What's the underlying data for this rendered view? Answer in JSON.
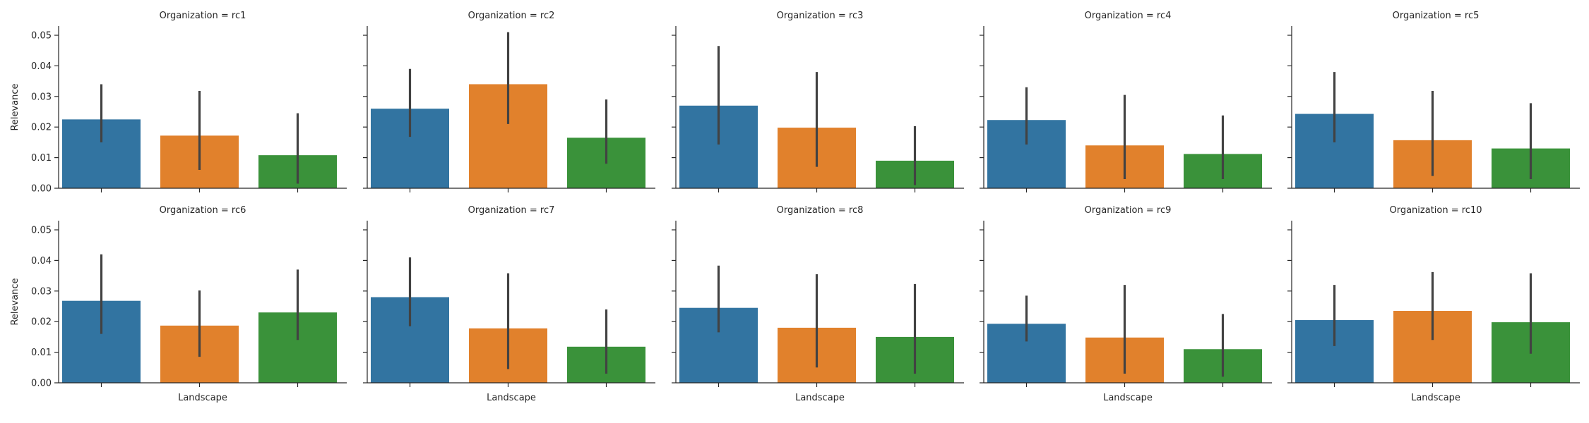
{
  "chart_data": {
    "type": "bar",
    "facet_label": "Organization",
    "xlabel": "Landscape",
    "ylabel": "Relevance",
    "ylim": [
      0,
      0.053
    ],
    "yticks": [
      0.0,
      0.01,
      0.02,
      0.03,
      0.04,
      0.05
    ],
    "ytick_labels": [
      "0.00",
      "0.01",
      "0.02",
      "0.03",
      "0.04",
      "0.05"
    ],
    "grid": false,
    "layout": {
      "rows": 2,
      "cols": 5
    },
    "colors": [
      "#3274a1",
      "#e1812c",
      "#3a923a"
    ],
    "panels": [
      {
        "title": "Organization = rc1",
        "values": [
          0.0225,
          0.0172,
          0.0108
        ],
        "ci": [
          [
            0.015,
            0.034
          ],
          [
            0.006,
            0.0318
          ],
          [
            0.0015,
            0.0245
          ]
        ]
      },
      {
        "title": "Organization = rc2",
        "values": [
          0.026,
          0.034,
          0.0165
        ],
        "ci": [
          [
            0.0168,
            0.039
          ],
          [
            0.021,
            0.051
          ],
          [
            0.008,
            0.029
          ]
        ]
      },
      {
        "title": "Organization = rc3",
        "values": [
          0.027,
          0.0198,
          0.009
        ],
        "ci": [
          [
            0.0143,
            0.0465
          ],
          [
            0.007,
            0.038
          ],
          [
            0.001,
            0.0203
          ]
        ]
      },
      {
        "title": "Organization = rc4",
        "values": [
          0.0223,
          0.014,
          0.0112
        ],
        "ci": [
          [
            0.0143,
            0.033
          ],
          [
            0.003,
            0.0305
          ],
          [
            0.003,
            0.0238
          ]
        ]
      },
      {
        "title": "Organization = rc5",
        "values": [
          0.0243,
          0.0157,
          0.013
        ],
        "ci": [
          [
            0.015,
            0.038
          ],
          [
            0.004,
            0.0318
          ],
          [
            0.003,
            0.0278
          ]
        ]
      },
      {
        "title": "Organization = rc6",
        "values": [
          0.0268,
          0.0187,
          0.023
        ],
        "ci": [
          [
            0.016,
            0.042
          ],
          [
            0.0085,
            0.0302
          ],
          [
            0.014,
            0.037
          ]
        ]
      },
      {
        "title": "Organization = rc7",
        "values": [
          0.028,
          0.0178,
          0.0118
        ],
        "ci": [
          [
            0.0185,
            0.041
          ],
          [
            0.0045,
            0.0358
          ],
          [
            0.003,
            0.024
          ]
        ]
      },
      {
        "title": "Organization = rc8",
        "values": [
          0.0245,
          0.018,
          0.015
        ],
        "ci": [
          [
            0.0165,
            0.0383
          ],
          [
            0.005,
            0.0355
          ],
          [
            0.003,
            0.0323
          ]
        ]
      },
      {
        "title": "Organization = rc9",
        "values": [
          0.0193,
          0.0148,
          0.011
        ],
        "ci": [
          [
            0.0135,
            0.0285
          ],
          [
            0.003,
            0.032
          ],
          [
            0.002,
            0.0225
          ]
        ]
      },
      {
        "title": "Organization = rc10",
        "values": [
          0.0205,
          0.0235,
          0.0198
        ],
        "ci": [
          [
            0.012,
            0.032
          ],
          [
            0.014,
            0.0362
          ],
          [
            0.0095,
            0.0358
          ]
        ]
      }
    ]
  }
}
